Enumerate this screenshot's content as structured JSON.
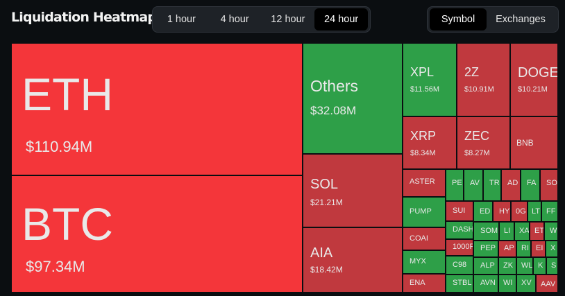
{
  "header": {
    "title": "Liquidation Heatmap",
    "time_options": [
      "1 hour",
      "4 hour",
      "12 hour",
      "24 hour"
    ],
    "time_selected": "24 hour",
    "view_options": [
      "Symbol",
      "Exchanges"
    ],
    "view_selected": "Symbol"
  },
  "colors": {
    "background": "#0b0e11",
    "loss_red": "#c0393e",
    "large_red": "#f4363a",
    "gain_green": "#2e9f48"
  },
  "tiles": [
    {
      "symbol": "ETH",
      "value": "$110.94M",
      "color": "bright"
    },
    {
      "symbol": "BTC",
      "value": "$97.34M",
      "color": "bright"
    },
    {
      "symbol": "Others",
      "value": "$32.08M",
      "color": "green"
    },
    {
      "symbol": "SOL",
      "value": "$21.21M",
      "color": "red"
    },
    {
      "symbol": "AIA",
      "value": "$18.42M",
      "color": "red"
    },
    {
      "symbol": "XPL",
      "value": "$11.56M",
      "color": "green"
    },
    {
      "symbol": "2Z",
      "value": "$10.91M",
      "color": "red"
    },
    {
      "symbol": "DOGE",
      "value": "$10.21M",
      "color": "red"
    },
    {
      "symbol": "XRP",
      "value": "$8.34M",
      "color": "red"
    },
    {
      "symbol": "ZEC",
      "value": "$8.27M",
      "color": "red"
    },
    {
      "symbol": "BNB",
      "value": "",
      "color": "red"
    },
    {
      "symbol": "ASTER",
      "value": "",
      "color": "red"
    },
    {
      "symbol": "PUMP",
      "value": "",
      "color": "green"
    },
    {
      "symbol": "COAI",
      "value": "",
      "color": "red"
    },
    {
      "symbol": "MYX",
      "value": "",
      "color": "green"
    },
    {
      "symbol": "ENA",
      "value": "",
      "color": "red"
    },
    {
      "symbol": "PE",
      "value": "",
      "color": "green"
    },
    {
      "symbol": "AV",
      "value": "",
      "color": "green"
    },
    {
      "symbol": "TR",
      "value": "",
      "color": "green"
    },
    {
      "symbol": "AD",
      "value": "",
      "color": "red"
    },
    {
      "symbol": "FA",
      "value": "",
      "color": "green"
    },
    {
      "symbol": "SO",
      "value": "",
      "color": "red"
    },
    {
      "symbol": "SUI",
      "value": "",
      "color": "red"
    },
    {
      "symbol": "DASH",
      "value": "",
      "color": "green"
    },
    {
      "symbol": "1000F",
      "value": "",
      "color": "red"
    },
    {
      "symbol": "C98",
      "value": "",
      "color": "green"
    },
    {
      "symbol": "STBL",
      "value": "",
      "color": "green"
    },
    {
      "symbol": "ED",
      "value": "",
      "color": "green"
    },
    {
      "symbol": "HY",
      "value": "",
      "color": "red"
    },
    {
      "symbol": "0G",
      "value": "",
      "color": "red"
    },
    {
      "symbol": "LT",
      "value": "",
      "color": "green"
    },
    {
      "symbol": "FF",
      "value": "",
      "color": "green"
    },
    {
      "symbol": "SOM",
      "value": "",
      "color": "green"
    },
    {
      "symbol": "LI",
      "value": "",
      "color": "green"
    },
    {
      "symbol": "XA",
      "value": "",
      "color": "green"
    },
    {
      "symbol": "ET",
      "value": "",
      "color": "red"
    },
    {
      "symbol": "W",
      "value": "",
      "color": "green"
    },
    {
      "symbol": "PEP",
      "value": "",
      "color": "green"
    },
    {
      "symbol": "AP",
      "value": "",
      "color": "red"
    },
    {
      "symbol": "RI",
      "value": "",
      "color": "green"
    },
    {
      "symbol": "EI",
      "value": "",
      "color": "red"
    },
    {
      "symbol": "X",
      "value": "",
      "color": "green"
    },
    {
      "symbol": "ALP",
      "value": "",
      "color": "green"
    },
    {
      "symbol": "ZK",
      "value": "",
      "color": "green"
    },
    {
      "symbol": "WL",
      "value": "",
      "color": "green"
    },
    {
      "symbol": "K",
      "value": "",
      "color": "green"
    },
    {
      "symbol": "S",
      "value": "",
      "color": "green"
    },
    {
      "symbol": "AVN",
      "value": "",
      "color": "green"
    },
    {
      "symbol": "WI",
      "value": "",
      "color": "green"
    },
    {
      "symbol": "XV",
      "value": "",
      "color": "green"
    },
    {
      "symbol": "AAV",
      "value": "",
      "color": "red"
    }
  ]
}
